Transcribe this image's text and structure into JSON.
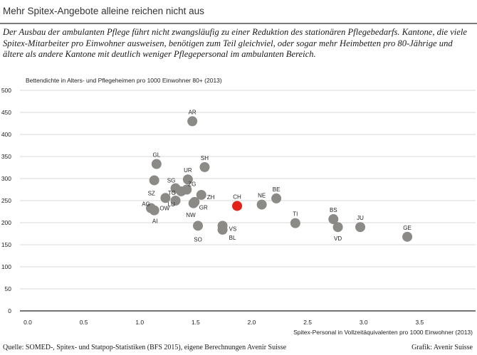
{
  "header": {
    "title": "Mehr Spitex-Angebote alleine reichen nicht aus",
    "subtitle": "Der Ausbau der ambulanten Pflege führt nicht zwangsläufig zu einer Reduktion des stationären Pflegebedarfs. Kantone, die viele Spitex-Mitarbeiter pro Einwohner ausweisen, benötigen zum Teil gleichviel, oder sogar mehr Heimbetten pro 80-Jährige und ältere als andere Kantone mit deutlich weniger Pflegepersonal im ambulanten Bereich."
  },
  "footer": {
    "source": "Quelle: SOMED-, Spitex- und Statpop-Statistiken (BFS 2015), eigene Berechnungen Avenir Suisse",
    "credit": "Grafik: Avenir Suisse"
  },
  "colors": {
    "point": "#8c8a87",
    "highlight": "#e32219",
    "grid": "#d9d9d9",
    "axis": "#222222"
  },
  "chart_data": {
    "type": "scatter",
    "ylabel": "Bettendichte in  Alters- und Pflegeheimen pro 1000 Einwohner 80+ (2013)",
    "xlabel": "Spitex-Personal in Vollzeitäquivalenten pro 1000 Einwohner (2013)",
    "xlim": [
      0,
      4.0
    ],
    "ylim": [
      0,
      500
    ],
    "xticks": [
      "0.0",
      "0.5",
      "1.0",
      "1.5",
      "2.0",
      "2.5",
      "3.0",
      "3.5"
    ],
    "yticks": [
      "0",
      "50",
      "100",
      "150",
      "200",
      "250",
      "300",
      "350",
      "400",
      "450",
      "500"
    ],
    "grid": "horizontal",
    "highlight": "CH",
    "points": [
      {
        "label": "AR",
        "x": 1.47,
        "y": 430
      },
      {
        "label": "GL",
        "x": 1.15,
        "y": 333
      },
      {
        "label": "SH",
        "x": 1.58,
        "y": 326
      },
      {
        "label": "UR",
        "x": 1.43,
        "y": 298
      },
      {
        "label": "SZ",
        "x": 1.13,
        "y": 296
      },
      {
        "label": "SG",
        "x": 1.32,
        "y": 278
      },
      {
        "label": "ZG",
        "x": 1.42,
        "y": 275
      },
      {
        "label": "TG",
        "x": 1.37,
        "y": 271
      },
      {
        "label": "ZH",
        "x": 1.55,
        "y": 263
      },
      {
        "label": "OW",
        "x": 1.23,
        "y": 256
      },
      {
        "label": "LU",
        "x": 1.32,
        "y": 250
      },
      {
        "label": "NW",
        "x": 1.49,
        "y": 247
      },
      {
        "label": "GR",
        "x": 1.48,
        "y": 244
      },
      {
        "label": "AG",
        "x": 1.1,
        "y": 233
      },
      {
        "label": "AI",
        "x": 1.13,
        "y": 228
      },
      {
        "label": "CH",
        "x": 1.87,
        "y": 238
      },
      {
        "label": "NE",
        "x": 2.09,
        "y": 241
      },
      {
        "label": "BE",
        "x": 2.22,
        "y": 255
      },
      {
        "label": "TI",
        "x": 2.39,
        "y": 199
      },
      {
        "label": "SO",
        "x": 1.52,
        "y": 193
      },
      {
        "label": "VS",
        "x": 1.74,
        "y": 193
      },
      {
        "label": "BL",
        "x": 1.74,
        "y": 184
      },
      {
        "label": "BS",
        "x": 2.73,
        "y": 208
      },
      {
        "label": "VD",
        "x": 2.77,
        "y": 190
      },
      {
        "label": "JU",
        "x": 2.97,
        "y": 190
      },
      {
        "label": "GE",
        "x": 3.39,
        "y": 168
      }
    ]
  }
}
